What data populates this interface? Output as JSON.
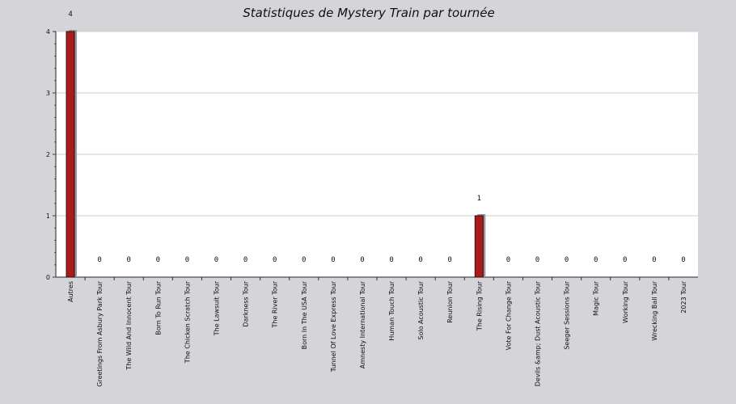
{
  "chart_data": {
    "type": "bar",
    "title": "Statistiques de Mystery Train par tournée",
    "xlabel": "",
    "ylabel": "",
    "ylim": [
      0,
      4
    ],
    "yticks": [
      0,
      1,
      2,
      3,
      4
    ],
    "grid": true,
    "categories": [
      "Autres",
      "Greetings From Asbury Park Tour",
      "The Wild And Innocent Tour",
      "Born To Run Tour",
      "The Chicken Scratch Tour",
      "The Lawsuit Tour",
      "Darkness Tour",
      "The River Tour",
      "Born In The USA Tour",
      "Tunnel Of Love Express Tour",
      "Amnesty International Tour",
      "Human Touch Tour",
      "Solo Acoustic Tour",
      "Reunion Tour",
      "The Rising Tour",
      "Vote For Change Tour",
      "Devils &amp; Dust Acoustic Tour",
      "Seeger Sessions Tour",
      "Magic Tour",
      "Working Tour",
      "Wrecking Ball Tour",
      "2023 Tour"
    ],
    "values": [
      4,
      0,
      0,
      0,
      0,
      0,
      0,
      0,
      0,
      0,
      0,
      0,
      0,
      0,
      1,
      0,
      0,
      0,
      0,
      0,
      0,
      0
    ],
    "colors": {
      "background": "#d5d4d9",
      "plot": "#ffffff",
      "bar": "#a81c1c",
      "bar_edge": "#3a0a0a",
      "bar_shadow": "#9a9a9a",
      "grid": "#cfcfcf"
    }
  }
}
